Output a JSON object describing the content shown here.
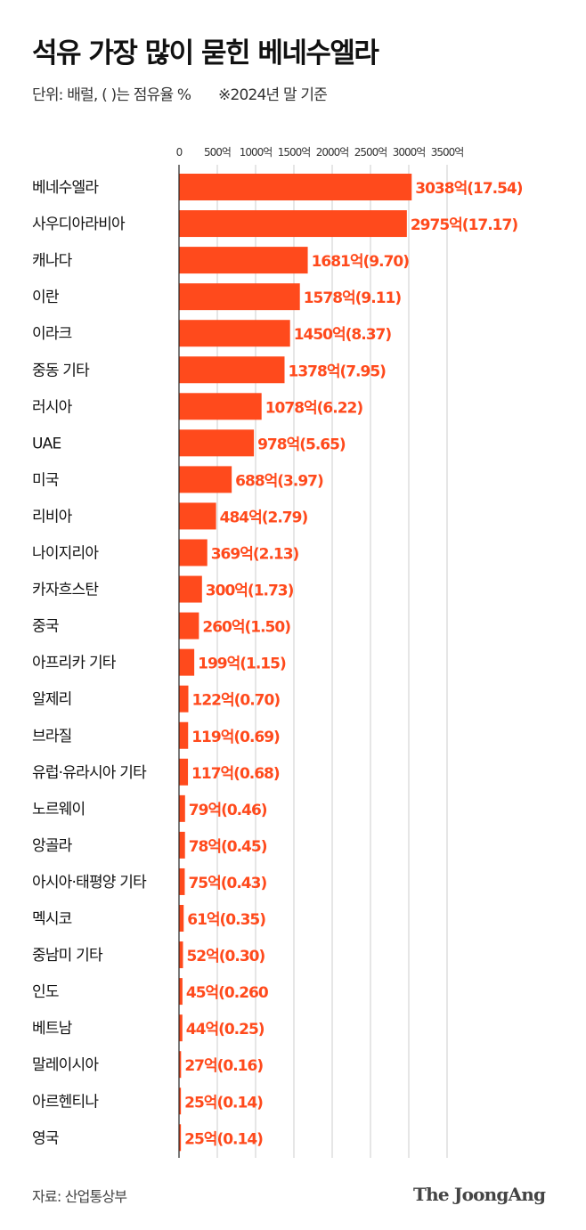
{
  "header": {
    "title": "석유 가장 많이 묻힌 베네수엘라",
    "subtitle": "단위: 배럴, ( )는 점유율 %",
    "note": "※2024년 말 기준"
  },
  "footer": {
    "source": "자료: 산업통상부",
    "logo": "The JoongAng"
  },
  "colors": {
    "bar": "#ff4a1c",
    "label": "#ff4a1c",
    "grid": "#cccccc"
  },
  "chart_data": {
    "type": "bar",
    "orientation": "horizontal",
    "title": "석유 가장 많이 묻힌 베네수엘라",
    "xlim": [
      0,
      3500
    ],
    "ticks": [
      0,
      500,
      1000,
      1500,
      2000,
      2500,
      3000,
      3500
    ],
    "tick_labels": [
      "0",
      "500억",
      "1000억",
      "1500억",
      "2000억",
      "2500억",
      "3000억",
      "3500억"
    ],
    "grid": true,
    "categories": [
      "베네수엘라",
      "사우디아라비아",
      "캐나다",
      "이란",
      "이라크",
      "중동 기타",
      "러시아",
      "UAE",
      "미국",
      "리비아",
      "나이지리아",
      "카자흐스탄",
      "중국",
      "아프리카 기타",
      "알제리",
      "브라질",
      "유럽·유라시아 기타",
      "노르웨이",
      "앙골라",
      "아시아·태평양 기타",
      "멕시코",
      "중남미 기타",
      "인도",
      "베트남",
      "말레이시아",
      "아르헨티나",
      "영국"
    ],
    "values": [
      3038,
      2975,
      1681,
      1578,
      1450,
      1378,
      1078,
      978,
      688,
      484,
      369,
      300,
      260,
      199,
      122,
      119,
      117,
      79,
      78,
      75,
      61,
      52,
      45,
      44,
      27,
      25,
      25
    ],
    "shares": [
      17.54,
      17.17,
      9.7,
      9.11,
      8.37,
      7.95,
      6.22,
      5.65,
      3.97,
      2.79,
      2.13,
      1.73,
      1.5,
      1.15,
      0.7,
      0.69,
      0.68,
      0.46,
      0.45,
      0.43,
      0.35,
      0.3,
      0.26,
      0.25,
      0.16,
      0.14,
      0.14
    ],
    "data_labels": [
      "3038억(17.54)",
      "2975억(17.17)",
      "1681억(9.70)",
      "1578억(9.11)",
      "1450억(8.37)",
      "1378억(7.95)",
      "1078억(6.22)",
      "978억(5.65)",
      "688억(3.97)",
      "484억(2.79)",
      "369억(2.13)",
      "300억(1.73)",
      "260억(1.50)",
      "199억(1.15)",
      "122억(0.70)",
      "119억(0.69)",
      "117억(0.68)",
      "79억(0.46)",
      "78억(0.45)",
      "75억(0.43)",
      "61억(0.35)",
      "52억(0.30)",
      "45억(0.260",
      "44억(0.25)",
      "27억(0.16)",
      "25억(0.14)",
      "25억(0.14)"
    ]
  }
}
